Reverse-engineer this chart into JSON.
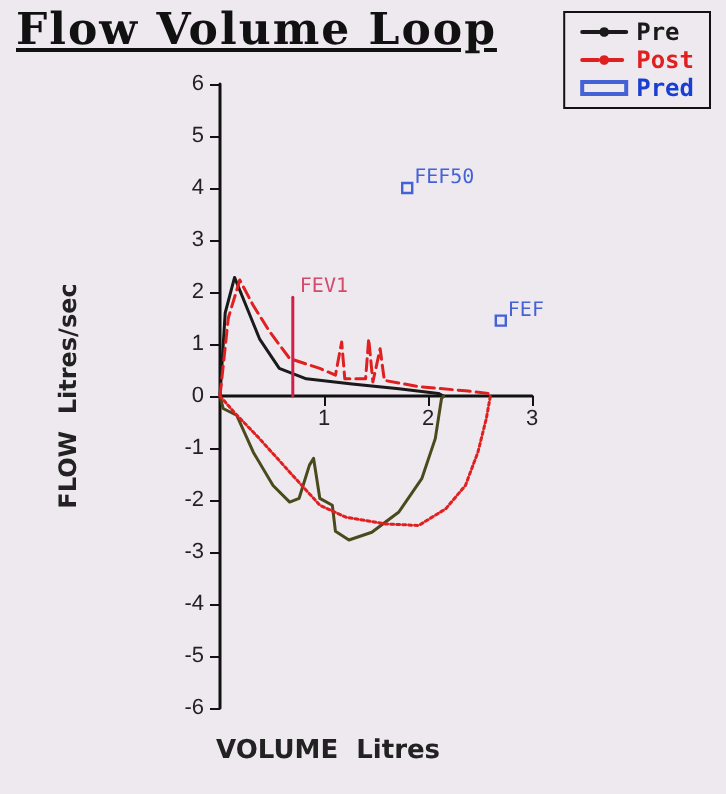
{
  "chart_data": {
    "type": "line",
    "title": "Flow Volume Loop",
    "xlabel": "VOLUME  Litres",
    "ylabel": "FLOW  Litres/sec",
    "xlim": [
      0,
      3
    ],
    "xticks": [
      {
        "value": 0,
        "label": null
      },
      1,
      2,
      3
    ],
    "ylim": [
      -6,
      6
    ],
    "yticks": [
      -6,
      -5,
      -4,
      -3,
      -2,
      -1,
      0,
      1,
      2,
      3,
      4,
      5,
      6
    ],
    "grid": false,
    "legend": "top right",
    "series": [
      {
        "name": "Pre",
        "type": "line",
        "color": "#1a1a1a",
        "line_style": "solid",
        "x": [
          0,
          0.05,
          0.14,
          0.25,
          0.38,
          0.57,
          0.83,
          1.27,
          1.72,
          2.1,
          2.15
        ],
        "values": [
          0,
          1.6,
          2.28,
          1.74,
          1.1,
          0.53,
          0.33,
          0.23,
          0.14,
          0.05,
          0
        ]
      },
      {
        "type": "line",
        "color": "#4a4a1c",
        "line_style": "solid",
        "x": [
          0,
          0.03,
          0.16,
          0.32,
          0.51,
          0.67,
          0.76,
          0.86,
          0.9,
          0.96,
          1.08,
          1.11,
          1.24,
          1.46,
          1.72,
          1.94,
          2.07,
          2.13,
          2.15
        ],
        "values": [
          0,
          -0.24,
          -0.37,
          -1.08,
          -1.72,
          -2.04,
          -1.97,
          -1.33,
          -1.2,
          -1.97,
          -2.1,
          -2.6,
          -2.77,
          -2.62,
          -2.23,
          -1.59,
          -0.82,
          -0.05,
          0
        ]
      },
      {
        "name": "Post",
        "type": "line",
        "color": "#e02020",
        "line_style": "dashed",
        "x": [
          0,
          0.08,
          0.19,
          0.32,
          0.48,
          0.67,
          0.96,
          1.11,
          1.17,
          1.2,
          1.4,
          1.43,
          1.47,
          1.54,
          1.58,
          1.91,
          2.36,
          2.58,
          2.6
        ],
        "values": [
          0,
          1.5,
          2.23,
          1.74,
          1.23,
          0.72,
          0.53,
          0.4,
          1.04,
          0.33,
          0.33,
          1.1,
          0.27,
          0.91,
          0.3,
          0.18,
          0.1,
          0.05,
          0
        ]
      },
      {
        "color": "#e02020",
        "line_style": "dotted",
        "x": [
          0,
          0.13,
          0.38,
          0.7,
          0.96,
          1.21,
          1.59,
          1.91,
          2.17,
          2.36,
          2.48,
          2.56,
          2.6
        ],
        "values": [
          0,
          -0.3,
          -0.82,
          -1.53,
          -2.1,
          -2.33,
          -2.46,
          -2.49,
          -2.17,
          -1.72,
          -1.08,
          -0.44,
          0
        ]
      },
      {
        "color": "#d0204a",
        "line_style": "solid",
        "x": [
          0.7,
          0.7
        ],
        "values": [
          0,
          1.9
        ]
      },
      {
        "name": "Pred",
        "type": "scatter",
        "color": "#1a3fd0",
        "marker": "square",
        "x": [
          1.8,
          2.7
        ],
        "values": [
          4.0,
          1.45
        ]
      }
    ],
    "annotations": [
      {
        "text": "FEF50",
        "x": 1.8,
        "y": 4.0
      },
      {
        "text": "FEF",
        "x": 2.7,
        "y": 1.45
      },
      {
        "text": "FEV1",
        "x": 0.7,
        "y": 1.9
      }
    ]
  }
}
